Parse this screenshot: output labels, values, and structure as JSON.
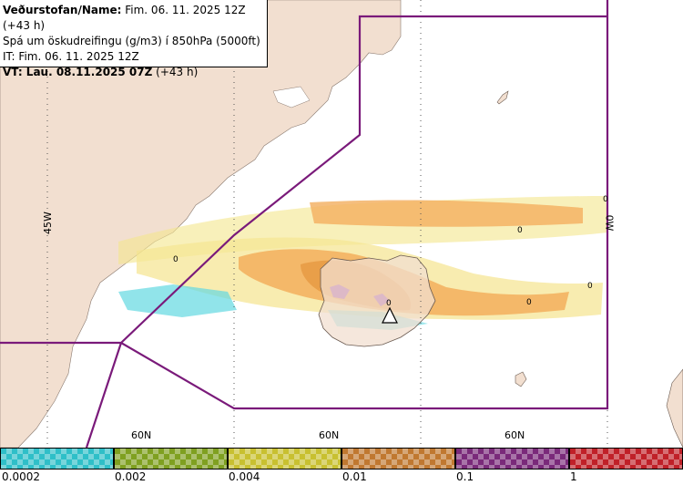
{
  "header": {
    "line1_prefix": "Veðurstofan/Name:",
    "line1_value": " Fim. 06. 11. 2025 12Z (+43 h)",
    "line2": "Spá um öskudreifingu (g/m3) í 850hPa (5000ft)",
    "line3": "IT: Fim. 06. 11. 2025 12Z",
    "line4_prefix": "VT:",
    "line4_value": " Lau. 08.11.2025 07Z",
    "line4_suffix": " (+43 h)"
  },
  "grid_labels": {
    "lon_left": "45W",
    "lon_right": "0W",
    "lat_1": "60N",
    "lat_2": "60N",
    "lat_3": "60N"
  },
  "contour_labels": [
    "0",
    "0",
    "0",
    "0",
    "0",
    "0"
  ],
  "colors": {
    "land": "#f2dfd0",
    "sea": "#ffffff",
    "boundary": "#7a1a7a",
    "light": "#f5e690",
    "orange": "#f2aa55",
    "purple": "#9b3ea8",
    "cyan": "#5ad6e0"
  },
  "legend": {
    "ticks": [
      "0.0002",
      "0.002",
      "0.004",
      "0.01",
      "0.1",
      "1"
    ],
    "colors": [
      "#2fbfc8",
      "#7fa020",
      "#c8c030",
      "#c07830",
      "#7a2a7a",
      "#c02028"
    ]
  }
}
